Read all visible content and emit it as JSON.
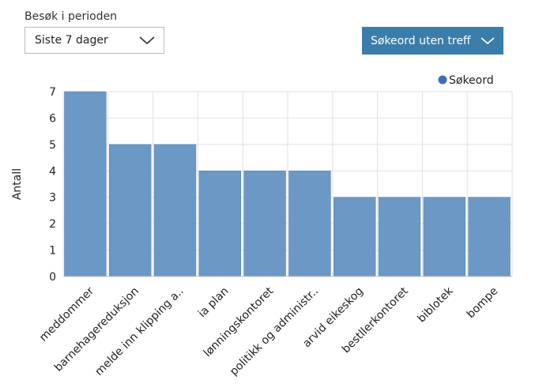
{
  "filters": {
    "period_label": "Besøk i perioden",
    "period_value": "Siste 7 dager",
    "keyword_button_label": "Søkeord uten treff",
    "chevron_icon": "chevron-down-icon"
  },
  "colors": {
    "bar": "#6c98c6",
    "bar_stroke": "#5a84b4",
    "legend_dot": "#3f6eb0",
    "grid": "#e2e2e2",
    "axis": "#c8c8c8",
    "button": "#3a7dab"
  },
  "chart_data": {
    "type": "bar",
    "title": "",
    "xlabel": "",
    "ylabel": "Antall",
    "ylim": [
      0,
      7
    ],
    "yticks": [
      0,
      1,
      2,
      3,
      4,
      5,
      6,
      7
    ],
    "grid": true,
    "legend_position": "top-right",
    "categories": [
      "meddommer",
      "barnehagereduksjon",
      "melde inn klipping a..",
      "ia plan",
      "lønningskontoret",
      "politikk og administr..",
      "arvid eikeskog",
      "bestllerkontoret",
      "biblotek",
      "bompe"
    ],
    "series": [
      {
        "name": "Søkeord",
        "values": [
          7,
          5,
          5,
          4,
          4,
          4,
          3,
          3,
          3,
          3
        ]
      }
    ]
  }
}
